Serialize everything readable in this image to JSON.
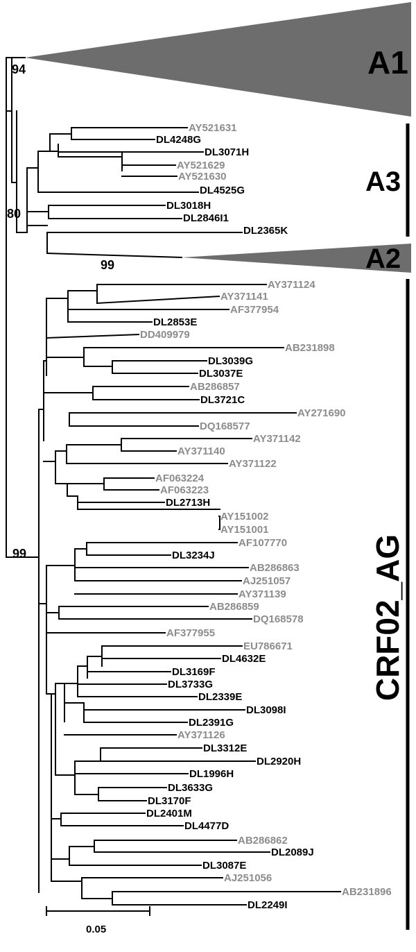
{
  "colors": {
    "reference": "#8c8c8c",
    "study": "#000000",
    "collapsed": "#6d6d6d"
  },
  "clades": {
    "A1": {
      "name": "A1",
      "bootstrap": "94"
    },
    "A3": {
      "name": "A3",
      "bootstrap": "80"
    },
    "A2": {
      "name": "A2",
      "bootstrap": "99"
    },
    "CRF02_AG": {
      "name": "CRF02_AG",
      "bootstrap": "99"
    }
  },
  "scale_bar": {
    "label": "0.05"
  },
  "leaves": [
    {
      "id": "AY521631",
      "ref": true
    },
    {
      "id": "DL4248G",
      "ref": false
    },
    {
      "id": "DL3071H",
      "ref": false
    },
    {
      "id": "AY521629",
      "ref": true
    },
    {
      "id": "AY521630",
      "ref": true
    },
    {
      "id": "DL4525G",
      "ref": false
    },
    {
      "id": "DL3018H",
      "ref": false
    },
    {
      "id": "DL2846I1",
      "ref": false
    },
    {
      "id": "DL2365K",
      "ref": false
    },
    {
      "id": "AY371124",
      "ref": true
    },
    {
      "id": "AY371141",
      "ref": true
    },
    {
      "id": "AF377954",
      "ref": true
    },
    {
      "id": "DL2853E",
      "ref": false
    },
    {
      "id": "DD409979",
      "ref": true
    },
    {
      "id": "AB231898",
      "ref": true
    },
    {
      "id": "DL3039G",
      "ref": false
    },
    {
      "id": "DL3037E",
      "ref": false
    },
    {
      "id": "AB286857",
      "ref": true
    },
    {
      "id": "DL3721C",
      "ref": false
    },
    {
      "id": "AY271690",
      "ref": true
    },
    {
      "id": "DQ168577",
      "ref": true
    },
    {
      "id": "AY371142",
      "ref": true
    },
    {
      "id": "AY371140",
      "ref": true
    },
    {
      "id": "AY371122",
      "ref": true
    },
    {
      "id": "AF063224",
      "ref": true
    },
    {
      "id": "AF063223",
      "ref": true
    },
    {
      "id": "DL2713H",
      "ref": false
    },
    {
      "id": "AY151002",
      "ref": true
    },
    {
      "id": "AY151001",
      "ref": true
    },
    {
      "id": "AF107770",
      "ref": true
    },
    {
      "id": "DL3234J",
      "ref": false
    },
    {
      "id": "AB286863",
      "ref": true
    },
    {
      "id": "AJ251057",
      "ref": true
    },
    {
      "id": "AY371139",
      "ref": true
    },
    {
      "id": "AB286859",
      "ref": true
    },
    {
      "id": "DQ168578",
      "ref": true
    },
    {
      "id": "AF377955",
      "ref": true
    },
    {
      "id": "EU786671",
      "ref": true
    },
    {
      "id": "DL4632E",
      "ref": false
    },
    {
      "id": "DL3169F",
      "ref": false
    },
    {
      "id": "DL3733G",
      "ref": false
    },
    {
      "id": "DL2339E",
      "ref": false
    },
    {
      "id": "DL3098I",
      "ref": false
    },
    {
      "id": "DL2391G",
      "ref": false
    },
    {
      "id": "AY371126",
      "ref": true
    },
    {
      "id": "DL3312E",
      "ref": false
    },
    {
      "id": "DL2920H",
      "ref": false
    },
    {
      "id": "DL1996H",
      "ref": false
    },
    {
      "id": "DL3633G",
      "ref": false
    },
    {
      "id": "DL3170F",
      "ref": false
    },
    {
      "id": "DL2401M",
      "ref": false
    },
    {
      "id": "DL4477D",
      "ref": false
    },
    {
      "id": "AB286862",
      "ref": true
    },
    {
      "id": "DL2089J",
      "ref": false
    },
    {
      "id": "DL3087E",
      "ref": false
    },
    {
      "id": "AJ251056",
      "ref": true
    },
    {
      "id": "AB231896",
      "ref": true
    },
    {
      "id": "DL2249I",
      "ref": false
    }
  ]
}
